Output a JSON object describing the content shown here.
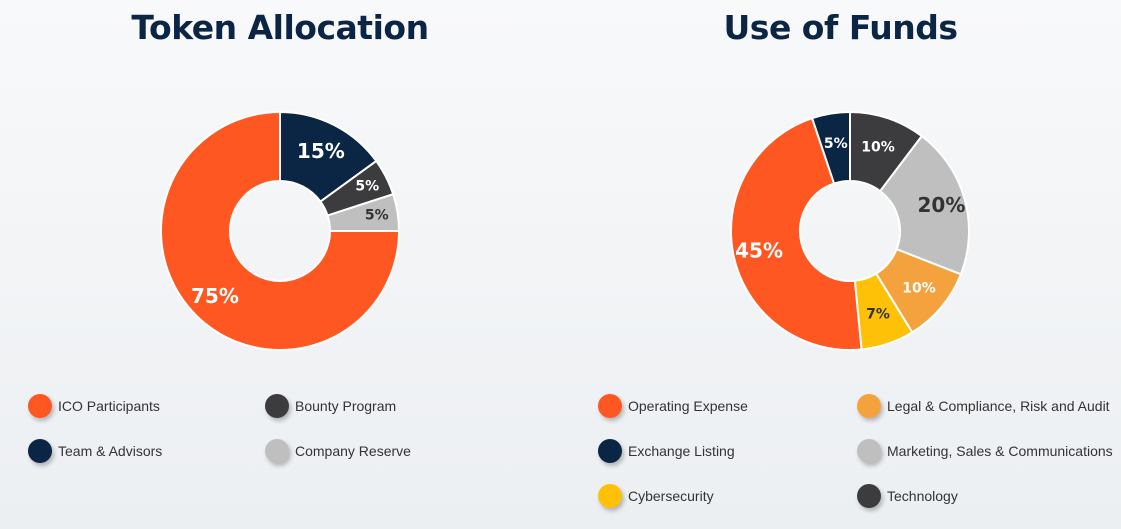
{
  "chart_data": [
    {
      "type": "pie",
      "title": "Token Allocation",
      "slices": [
        {
          "label": "Team & Advisors",
          "value": 15,
          "display": "15%",
          "color": "#0b2545",
          "text_color": "#ffffff"
        },
        {
          "label": "Bounty Program",
          "value": 5,
          "display": "5%",
          "color": "#3c3c3e",
          "text_color": "#ffffff"
        },
        {
          "label": "Company Reserve",
          "value": 5,
          "display": "5%",
          "color": "#bfbfbf",
          "text_color": "#333333"
        },
        {
          "label": "ICO Participants",
          "value": 75,
          "display": "75%",
          "color": "#ff5722",
          "text_color": "#ffffff"
        }
      ],
      "legend": [
        {
          "label": "ICO Participants",
          "color": "#ff5722"
        },
        {
          "label": "Bounty Program",
          "color": "#3c3c3e"
        },
        {
          "label": "Team & Advisors",
          "color": "#0b2545"
        },
        {
          "label": "Company Reserve",
          "color": "#bfbfbf"
        }
      ]
    },
    {
      "type": "pie",
      "title": "Use of Funds",
      "slices": [
        {
          "label": "Technology",
          "value": 10,
          "display": "10%",
          "color": "#3c3c3e",
          "text_color": "#ffffff"
        },
        {
          "label": "Marketing, Sales & Communications",
          "value": 20,
          "display": "20%",
          "color": "#bfbfbf",
          "text_color": "#333333"
        },
        {
          "label": "Legal & Compliance, Risk and Audit",
          "value": 10,
          "display": "10%",
          "color": "#f4a23e",
          "text_color": "#ffffff"
        },
        {
          "label": "Cybersecurity",
          "value": 7,
          "display": "7%",
          "color": "#ffc107",
          "text_color": "#333333"
        },
        {
          "label": "Operating Expense",
          "value": 45,
          "display": "45%",
          "color": "#ff5722",
          "text_color": "#ffffff"
        },
        {
          "label": "Exchange Listing",
          "value": 5,
          "display": "5%",
          "color": "#0b2545",
          "text_color": "#ffffff"
        }
      ],
      "legend": [
        {
          "label": "Operating Expense",
          "color": "#ff5722"
        },
        {
          "label": "Legal & Compliance, Risk and Audit",
          "color": "#f4a23e"
        },
        {
          "label": "Exchange Listing",
          "color": "#0b2545"
        },
        {
          "label": "Marketing, Sales & Communications",
          "color": "#bfbfbf"
        },
        {
          "label": "Cybersecurity",
          "color": "#ffc107"
        },
        {
          "label": "Technology",
          "color": "#3c3c3e"
        }
      ]
    }
  ]
}
